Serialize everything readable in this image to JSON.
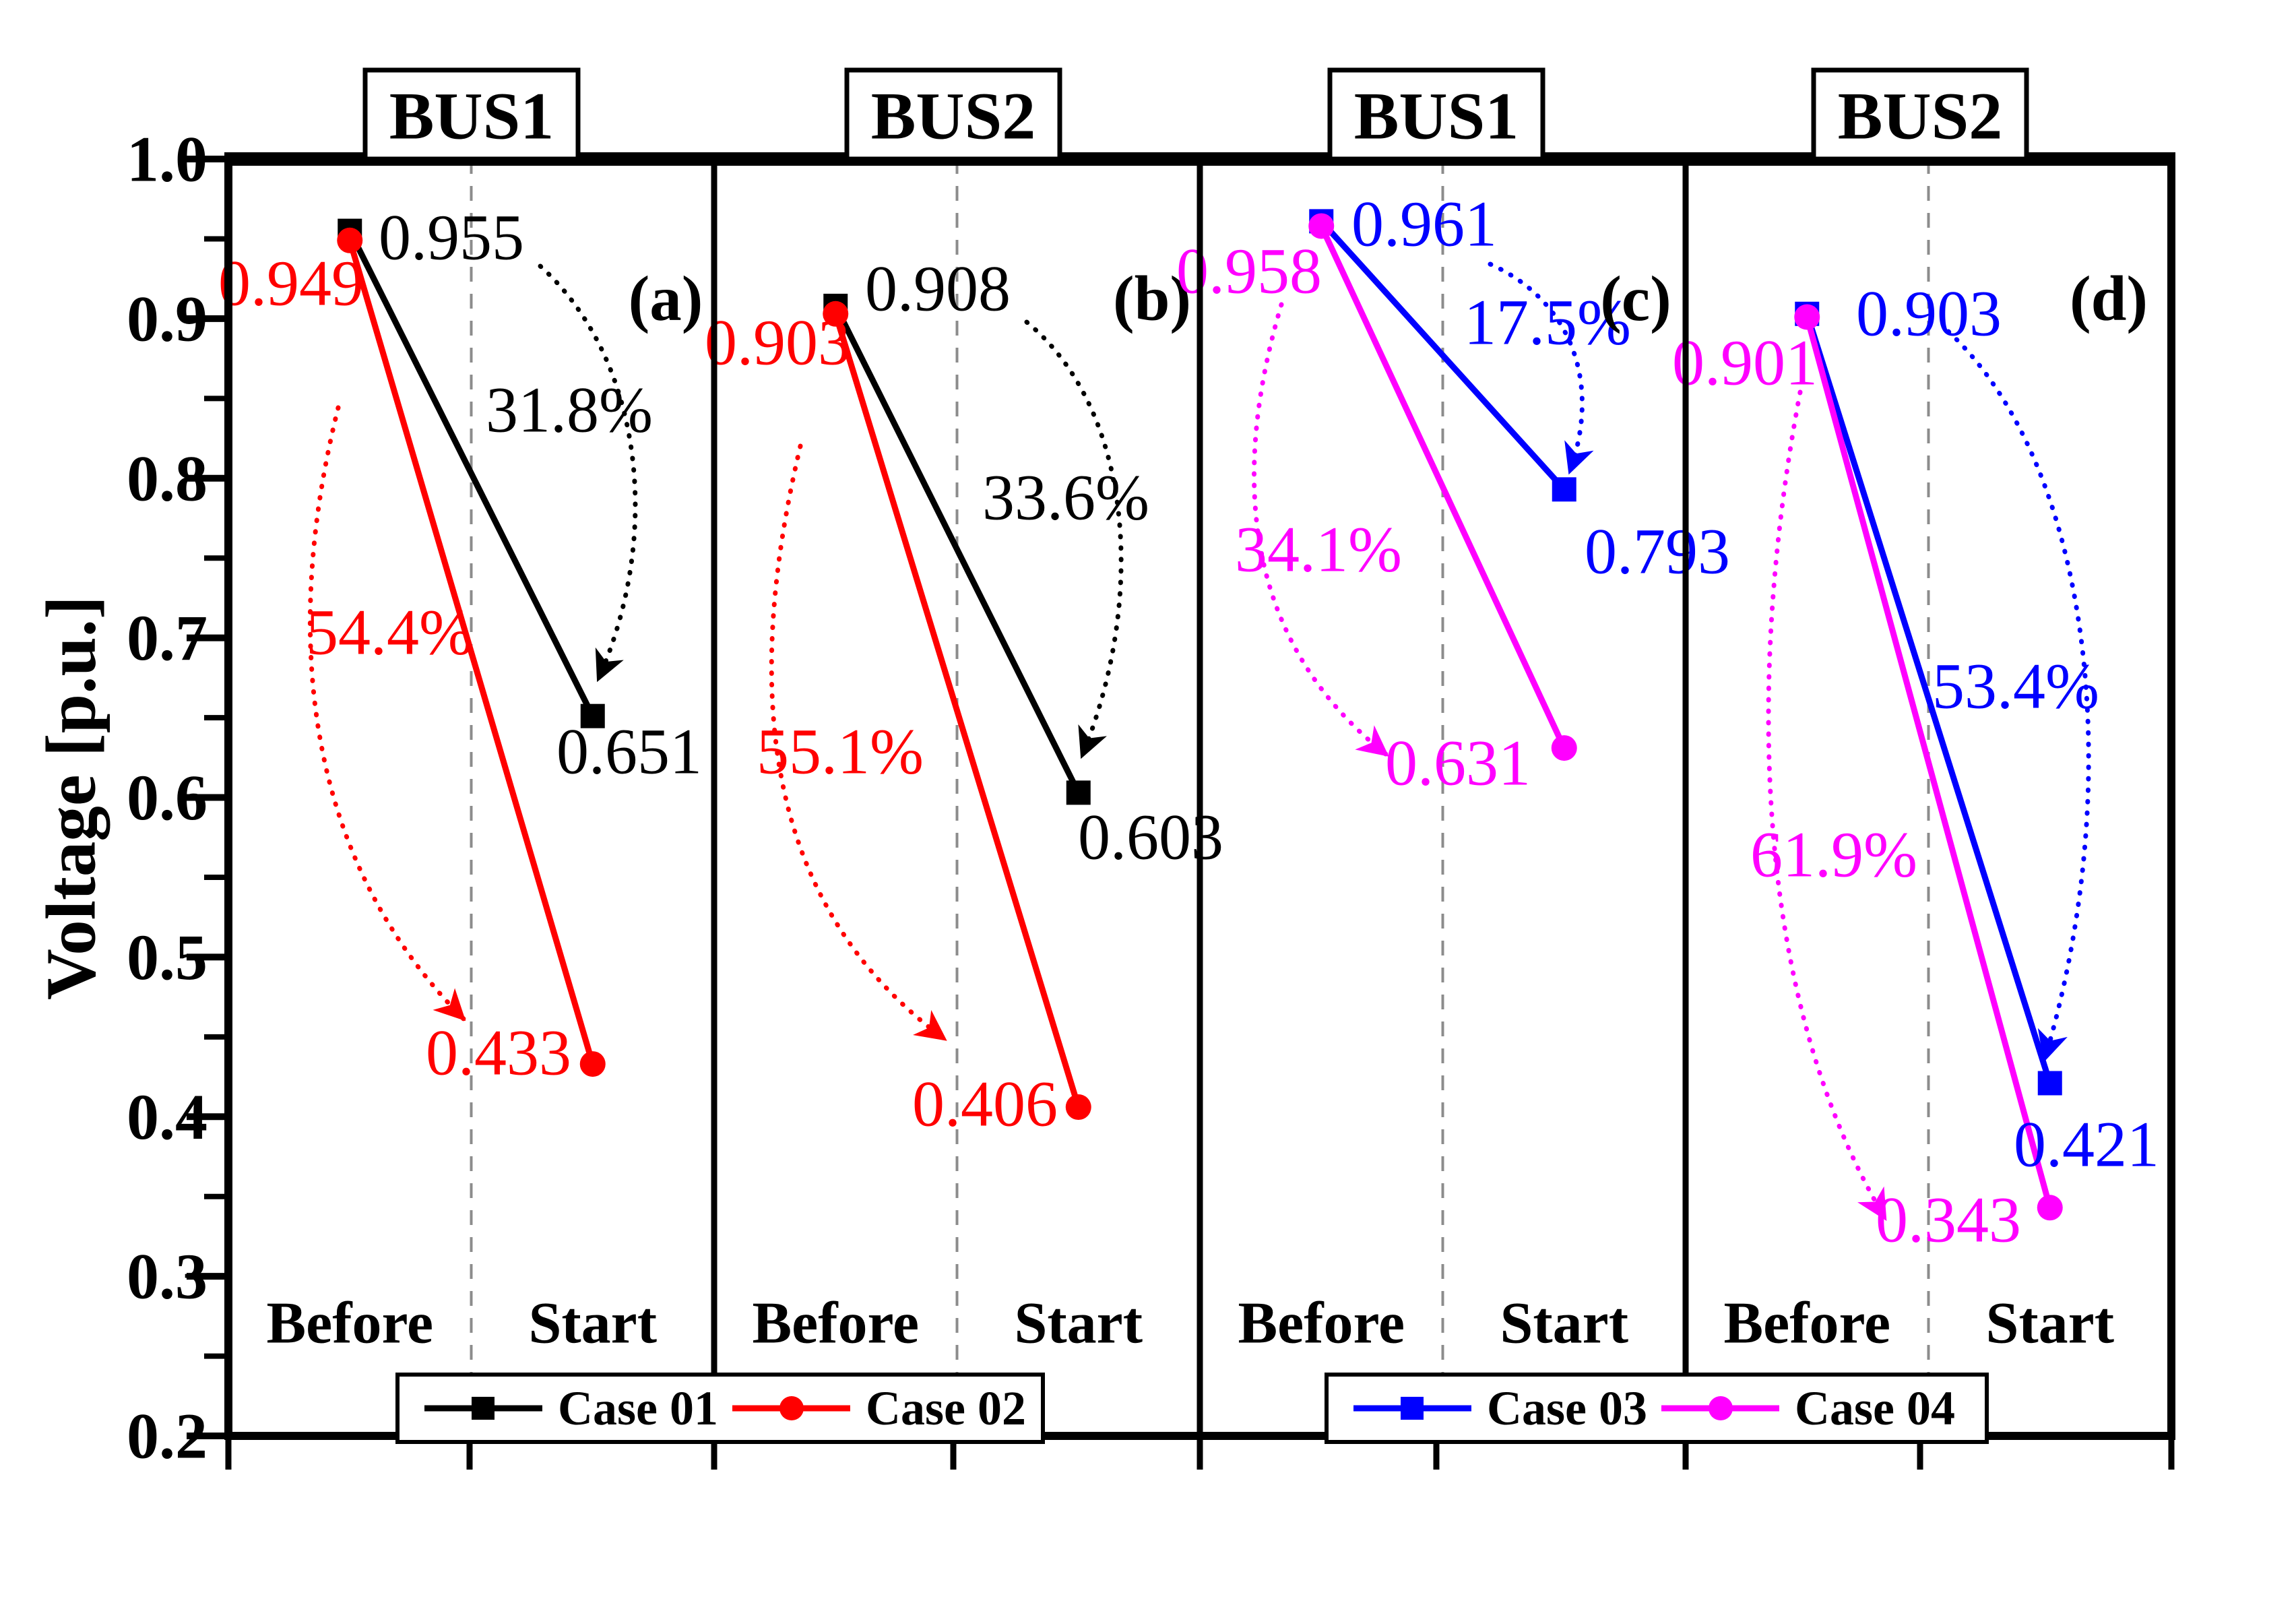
{
  "chart_data": {
    "type": "line",
    "title": "",
    "ylabel": "Voltage [p.u.]",
    "ylim": [
      0.2,
      1.0
    ],
    "ytick_labels": [
      "1.0",
      "0.9",
      "0.8",
      "0.7",
      "0.6",
      "0.5",
      "0.4",
      "0.3",
      "0.2"
    ],
    "x_categories": [
      "Before",
      "Start"
    ],
    "panel_separator": "dashed",
    "legend_position": "bottom",
    "panels": [
      {
        "panel_label": "(a)",
        "bus": "BUS1",
        "series": [
          {
            "name": "Case 01",
            "color": "#000000",
            "marker": "square",
            "values": [
              0.955,
              0.651
            ],
            "value_labels": [
              "0.955",
              "0.651"
            ],
            "drop_label": "31.8%"
          },
          {
            "name": "Case 02",
            "color": "#ff0000",
            "marker": "circle",
            "values": [
              0.949,
              0.433
            ],
            "value_labels": [
              "0.949",
              "0.433"
            ],
            "drop_label": "54.4%"
          }
        ]
      },
      {
        "panel_label": "(b)",
        "bus": "BUS2",
        "series": [
          {
            "name": "Case 01",
            "color": "#000000",
            "marker": "square",
            "values": [
              0.908,
              0.603
            ],
            "value_labels": [
              "0.908",
              "0.603"
            ],
            "drop_label": "33.6%"
          },
          {
            "name": "Case 02",
            "color": "#ff0000",
            "marker": "circle",
            "values": [
              0.903,
              0.406
            ],
            "value_labels": [
              "0.903",
              "0.406"
            ],
            "drop_label": "55.1%"
          }
        ]
      },
      {
        "panel_label": "(c)",
        "bus": "BUS1",
        "series": [
          {
            "name": "Case 03",
            "color": "#0000ff",
            "marker": "square",
            "values": [
              0.961,
              0.793
            ],
            "value_labels": [
              "0.961",
              "0.793"
            ],
            "drop_label": "17.5%"
          },
          {
            "name": "Case 04",
            "color": "#ff00ff",
            "marker": "circle",
            "values": [
              0.958,
              0.631
            ],
            "value_labels": [
              "0.958",
              "0.631"
            ],
            "drop_label": "34.1%"
          }
        ]
      },
      {
        "panel_label": "(d)",
        "bus": "BUS2",
        "series": [
          {
            "name": "Case 03",
            "color": "#0000ff",
            "marker": "square",
            "values": [
              0.903,
              0.421
            ],
            "value_labels": [
              "0.903",
              "0.421"
            ],
            "drop_label": "53.4%"
          },
          {
            "name": "Case 04",
            "color": "#ff00ff",
            "marker": "circle",
            "values": [
              0.901,
              0.343
            ],
            "value_labels": [
              "0.901",
              "0.343"
            ],
            "drop_label": "61.9%"
          }
        ]
      }
    ],
    "legends": [
      {
        "items": [
          {
            "label": "Case 01",
            "color": "#000000",
            "marker": "square"
          },
          {
            "label": "Case 02",
            "color": "#ff0000",
            "marker": "circle"
          }
        ]
      },
      {
        "items": [
          {
            "label": "Case 03",
            "color": "#0000ff",
            "marker": "square"
          },
          {
            "label": "Case 04",
            "color": "#ff00ff",
            "marker": "circle"
          }
        ]
      }
    ]
  }
}
